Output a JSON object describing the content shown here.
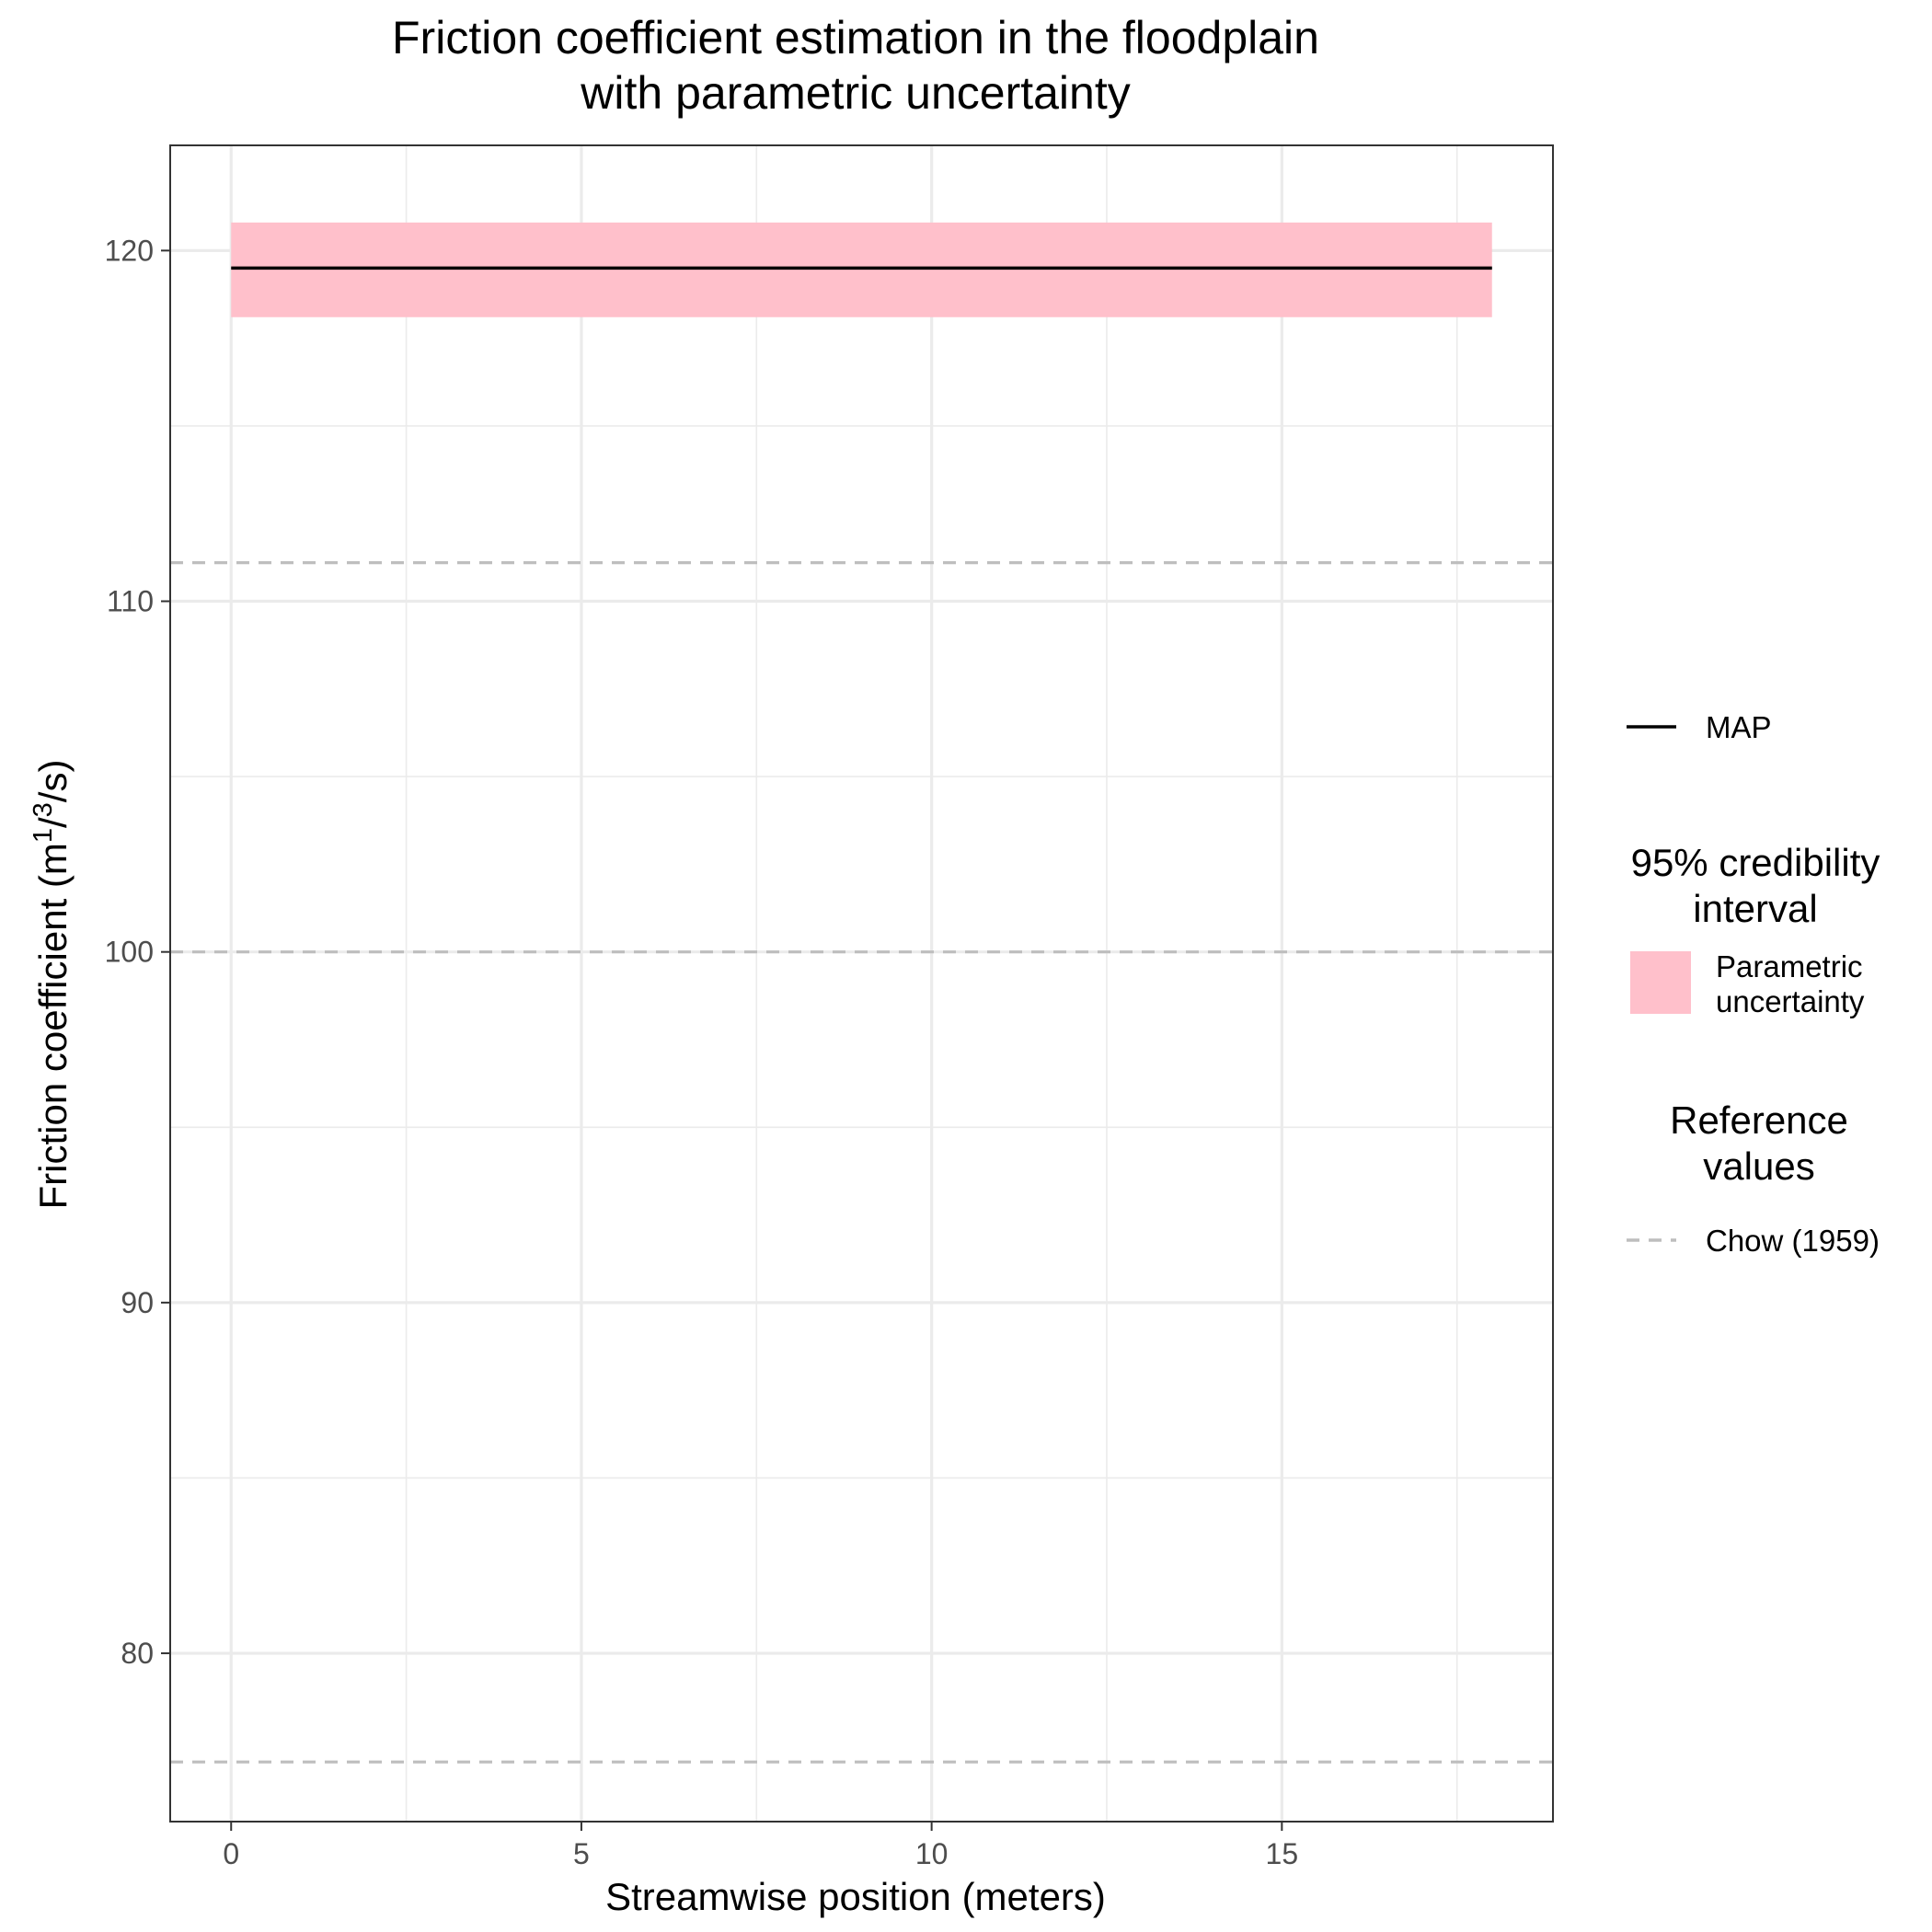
{
  "chart_data": {
    "type": "line",
    "title": [
      "Friction coefficient estimation in the floodplain",
      "with parametric uncertainty"
    ],
    "xlabel": "Streamwise position (meters)",
    "ylabel": {
      "text": "Friction coefficient (m",
      "sup1": "1",
      "slash": "/",
      "sup2": "3",
      "tail": "/s)"
    },
    "xlim": [
      -0.87,
      18.87
    ],
    "ylim": [
      75.2,
      123.0
    ],
    "xticks": [
      0,
      5,
      10,
      15
    ],
    "yticks": [
      80,
      90,
      100,
      110,
      120
    ],
    "grid": true,
    "series": [
      {
        "name": "MAP",
        "kind": "line",
        "color": "#000000",
        "x": [
          0,
          18
        ],
        "y": [
          119.5,
          119.5
        ]
      }
    ],
    "bands": [
      {
        "name": "Parametric uncertainty",
        "color": "#FFC0CB",
        "x": [
          0,
          18
        ],
        "ymin": [
          118.1,
          118.1
        ],
        "ymax": [
          120.8,
          120.8
        ]
      }
    ],
    "reference_lines": [
      {
        "name": "Chow (1959)",
        "color": "#BEBEBE",
        "style": "dashed",
        "y": [
          111.1,
          100.0,
          76.9
        ]
      }
    ],
    "legend": {
      "placement": "right",
      "line_label": "MAP",
      "band_title": [
        "95% credibility",
        "interval"
      ],
      "band_label": [
        "Parametric",
        "uncertainty"
      ],
      "ref_title": [
        "Reference",
        "values"
      ],
      "ref_label": "Chow (1959)"
    }
  }
}
